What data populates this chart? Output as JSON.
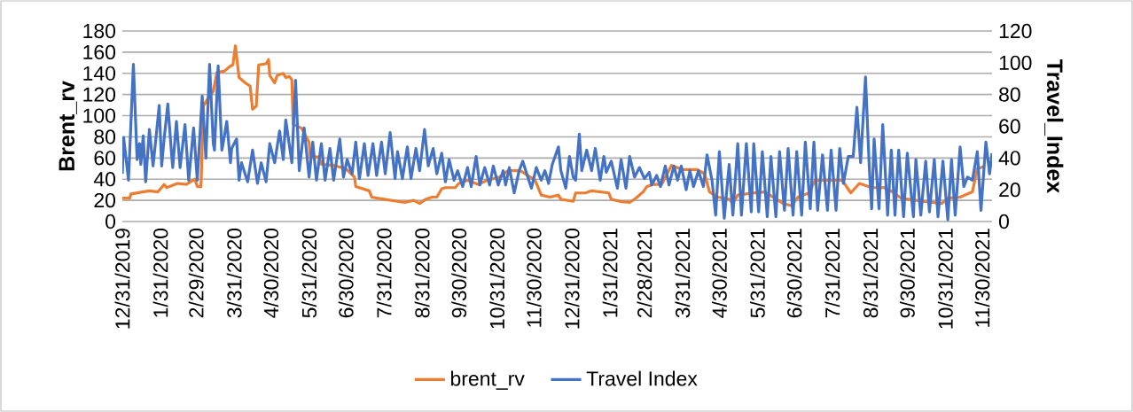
{
  "chart_data": {
    "type": "line",
    "ylabel": "Brent_rv",
    "y2label": "Travel_Index",
    "xlim": [
      "2019-12-31",
      "2021-12-08"
    ],
    "xticks": [
      {
        "value": "2019-12-31",
        "label": "12/31/2019"
      },
      {
        "value": "2020-01-31",
        "label": "1/31/2020"
      },
      {
        "value": "2020-02-29",
        "label": "2/29/2020"
      },
      {
        "value": "2020-03-31",
        "label": "3/31/2020"
      },
      {
        "value": "2020-04-30",
        "label": "4/30/2020"
      },
      {
        "value": "2020-05-31",
        "label": "5/31/2020"
      },
      {
        "value": "2020-06-30",
        "label": "6/30/2020"
      },
      {
        "value": "2020-07-31",
        "label": "7/31/2020"
      },
      {
        "value": "2020-08-31",
        "label": "8/31/2020"
      },
      {
        "value": "2020-09-30",
        "label": "9/30/2020"
      },
      {
        "value": "2020-10-31",
        "label": "10/31/2020"
      },
      {
        "value": "2020-11-30",
        "label": "11/30/2020"
      },
      {
        "value": "2020-12-31",
        "label": "12/31/2020"
      },
      {
        "value": "2021-01-31",
        "label": "1/31/2021"
      },
      {
        "value": "2021-02-28",
        "label": "2/28/2021"
      },
      {
        "value": "2021-03-31",
        "label": "3/31/2021"
      },
      {
        "value": "2021-04-30",
        "label": "4/30/2021"
      },
      {
        "value": "2021-05-31",
        "label": "5/31/2021"
      },
      {
        "value": "2021-06-30",
        "label": "6/30/2021"
      },
      {
        "value": "2021-07-31",
        "label": "7/31/2021"
      },
      {
        "value": "2021-08-31",
        "label": "8/31/2021"
      },
      {
        "value": "2021-09-30",
        "label": "9/30/2021"
      },
      {
        "value": "2021-10-31",
        "label": "10/31/2021"
      },
      {
        "value": "2021-11-30",
        "label": "11/30/2021"
      }
    ],
    "ylim": [
      0,
      180
    ],
    "yticks": [
      0,
      20,
      40,
      60,
      80,
      100,
      120,
      140,
      160,
      180
    ],
    "y2lim": [
      0,
      120
    ],
    "y2ticks": [
      0,
      20,
      40,
      60,
      80,
      100,
      120
    ],
    "grid": "y",
    "legend": "bottom",
    "marker": "none",
    "line_style": "solid",
    "series": [
      {
        "name": "brent_rv",
        "color": "#ed7d31",
        "axis": "y",
        "x": [
          "2019-12-31",
          "2020-01-06",
          "2020-01-07",
          "2020-01-22",
          "2020-01-29",
          "2020-02-03",
          "2020-02-05",
          "2020-02-14",
          "2020-02-21",
          "2020-02-28",
          "2020-03-01",
          "2020-03-04",
          "2020-03-06",
          "2020-03-09",
          "2020-03-14",
          "2020-03-17",
          "2020-03-23",
          "2020-03-28",
          "2020-03-30",
          "2020-04-01",
          "2020-04-04",
          "2020-04-09",
          "2020-04-13",
          "2020-04-15",
          "2020-04-18",
          "2020-04-20",
          "2020-04-26",
          "2020-04-28",
          "2020-04-29",
          "2020-05-03",
          "2020-05-05",
          "2020-05-10",
          "2020-05-12",
          "2020-05-15",
          "2020-05-17",
          "2020-05-18",
          "2020-05-25",
          "2020-05-31",
          "2020-06-01",
          "2020-06-08",
          "2020-06-10",
          "2020-06-20",
          "2020-06-30",
          "2020-07-07",
          "2020-07-08",
          "2020-07-19",
          "2020-07-21",
          "2020-07-31",
          "2020-08-17",
          "2020-08-24",
          "2020-08-29",
          "2020-09-03",
          "2020-09-08",
          "2020-09-12",
          "2020-09-16",
          "2020-09-19",
          "2020-09-27",
          "2020-09-30",
          "2020-10-07",
          "2020-10-16",
          "2020-10-23",
          "2020-11-02",
          "2020-11-09",
          "2020-11-19",
          "2020-12-01",
          "2020-12-06",
          "2020-12-13",
          "2020-12-20",
          "2020-12-22",
          "2021-01-01",
          "2021-01-03",
          "2021-01-11",
          "2021-01-16",
          "2021-01-30",
          "2021-02-01",
          "2021-02-08",
          "2021-02-16",
          "2021-02-21",
          "2021-02-27",
          "2021-03-02",
          "2021-03-07",
          "2021-03-14",
          "2021-03-22",
          "2021-03-31",
          "2021-04-12",
          "2021-04-18",
          "2021-04-22",
          "2021-04-29",
          "2021-05-08",
          "2021-05-11",
          "2021-05-15",
          "2021-05-28",
          "2021-06-06",
          "2021-06-13",
          "2021-06-21",
          "2021-06-28",
          "2021-07-03",
          "2021-07-12",
          "2021-07-17",
          "2021-08-08",
          "2021-08-15",
          "2021-08-22",
          "2021-09-01",
          "2021-09-11",
          "2021-09-18",
          "2021-09-25",
          "2021-10-14",
          "2021-10-28",
          "2021-11-02",
          "2021-11-12",
          "2021-11-22",
          "2021-11-26",
          "2021-12-02"
        ],
        "values": [
          22,
          22,
          26,
          29,
          28,
          35,
          32,
          36,
          35,
          40,
          33,
          33,
          109,
          115,
          123,
          141,
          142,
          147,
          148,
          166,
          136,
          131,
          128,
          106,
          109,
          148,
          149,
          153,
          138,
          131,
          138,
          140,
          136,
          137,
          134,
          92,
          88,
          75,
          61,
          61,
          54,
          53,
          50,
          42,
          33,
          29,
          23,
          21,
          18,
          20,
          17,
          21,
          23,
          23,
          31,
          32,
          32,
          36,
          39,
          35,
          39,
          42,
          48,
          48,
          39,
          25,
          23,
          25,
          21,
          19,
          27,
          27,
          29,
          27,
          21,
          19,
          18,
          22,
          28,
          33,
          35,
          35,
          53,
          49,
          49,
          45,
          28,
          23,
          21,
          17,
          25,
          27,
          28,
          23,
          17,
          15,
          23,
          27,
          39,
          39,
          27,
          36,
          32,
          32,
          28,
          22,
          19,
          17,
          22,
          23,
          28,
          50,
          52
        ]
      },
      {
        "name": "Travel Index",
        "color": "#4472c4",
        "axis": "y2",
        "x": [
          "2019-12-31",
          "2020-01-01",
          "2020-01-05",
          "2020-01-09",
          "2020-01-12",
          "2020-01-14",
          "2020-01-15",
          "2020-01-17",
          "2020-01-19",
          "2020-01-22",
          "2020-01-25",
          "2020-01-27",
          "2020-01-30",
          "2020-02-01",
          "2020-02-03",
          "2020-02-06",
          "2020-02-09",
          "2020-02-10",
          "2020-02-13",
          "2020-02-16",
          "2020-02-20",
          "2020-02-23",
          "2020-02-27",
          "2020-03-01",
          "2020-03-05",
          "2020-03-08",
          "2020-03-11",
          "2020-03-14",
          "2020-03-15",
          "2020-03-18",
          "2020-03-21",
          "2020-03-22",
          "2020-03-25",
          "2020-03-28",
          "2020-03-29",
          "2020-04-02",
          "2020-04-04",
          "2020-04-06",
          "2020-04-11",
          "2020-04-15",
          "2020-04-19",
          "2020-04-22",
          "2020-04-26",
          "2020-04-29",
          "2020-05-03",
          "2020-05-07",
          "2020-05-10",
          "2020-05-12",
          "2020-05-17",
          "2020-05-20",
          "2020-05-23",
          "2020-05-27",
          "2020-05-31",
          "2020-06-03",
          "2020-06-06",
          "2020-06-10",
          "2020-06-13",
          "2020-06-17",
          "2020-06-20",
          "2020-06-25",
          "2020-06-28",
          "2020-07-01",
          "2020-07-05",
          "2020-07-08",
          "2020-07-11",
          "2020-07-15",
          "2020-07-18",
          "2020-07-22",
          "2020-07-25",
          "2020-07-29",
          "2020-08-01",
          "2020-08-05",
          "2020-08-09",
          "2020-08-11",
          "2020-08-15",
          "2020-08-19",
          "2020-08-22",
          "2020-08-26",
          "2020-08-29",
          "2020-09-02",
          "2020-09-05",
          "2020-09-09",
          "2020-09-12",
          "2020-09-16",
          "2020-09-19",
          "2020-09-22",
          "2020-09-26",
          "2020-09-29",
          "2020-10-03",
          "2020-10-07",
          "2020-10-10",
          "2020-10-14",
          "2020-10-17",
          "2020-10-21",
          "2020-10-25",
          "2020-10-28",
          "2020-11-01",
          "2020-11-05",
          "2020-11-07",
          "2020-11-10",
          "2020-11-14",
          "2020-11-18",
          "2020-11-21",
          "2020-11-25",
          "2020-11-28",
          "2020-12-02",
          "2020-12-06",
          "2020-12-09",
          "2020-12-12",
          "2020-12-15",
          "2020-12-20",
          "2020-12-22",
          "2020-12-26",
          "2020-12-29",
          "2021-01-01",
          "2021-01-03",
          "2021-01-06",
          "2021-01-08",
          "2021-01-12",
          "2021-01-16",
          "2021-01-19",
          "2021-01-23",
          "2021-01-26",
          "2021-01-28",
          "2021-02-01",
          "2021-02-06",
          "2021-02-09",
          "2021-02-13",
          "2021-02-16",
          "2021-02-20",
          "2021-02-24",
          "2021-02-28",
          "2021-03-04",
          "2021-03-06",
          "2021-03-10",
          "2021-03-13",
          "2021-03-17",
          "2021-03-20",
          "2021-03-24",
          "2021-03-27",
          "2021-03-30",
          "2021-04-03",
          "2021-04-06",
          "2021-04-09",
          "2021-04-13",
          "2021-04-17",
          "2021-04-20",
          "2021-04-24",
          "2021-04-27",
          "2021-04-30",
          "2021-05-04",
          "2021-05-08",
          "2021-05-11",
          "2021-05-15",
          "2021-05-18",
          "2021-05-22",
          "2021-05-26",
          "2021-05-28",
          "2021-06-01",
          "2021-06-04",
          "2021-06-08",
          "2021-06-11",
          "2021-06-15",
          "2021-06-18",
          "2021-06-22",
          "2021-06-25",
          "2021-06-29",
          "2021-07-02",
          "2021-07-06",
          "2021-07-09",
          "2021-07-13",
          "2021-07-16",
          "2021-07-19",
          "2021-07-23",
          "2021-07-27",
          "2021-07-30",
          "2021-08-03",
          "2021-08-06",
          "2021-08-09",
          "2021-08-13",
          "2021-08-17",
          "2021-08-20",
          "2021-08-23",
          "2021-08-27",
          "2021-08-30",
          "2021-09-01",
          "2021-09-03",
          "2021-09-07",
          "2021-09-10",
          "2021-09-14",
          "2021-09-17",
          "2021-09-20",
          "2021-09-23",
          "2021-09-27",
          "2021-09-30",
          "2021-10-05",
          "2021-10-07",
          "2021-10-11",
          "2021-10-15",
          "2021-10-18",
          "2021-10-22",
          "2021-10-25",
          "2021-10-29",
          "2021-11-02",
          "2021-11-05",
          "2021-11-08",
          "2021-11-12",
          "2021-11-15",
          "2021-11-18",
          "2021-11-22",
          "2021-11-26",
          "2021-11-29",
          "2021-12-03",
          "2021-12-06",
          "2021-12-08"
        ],
        "values": [
          30,
          53,
          26,
          99,
          39,
          49,
          36,
          54,
          25,
          58,
          35,
          50,
          73,
          35,
          52,
          74,
          43,
          34,
          63,
          34,
          61,
          26,
          59,
          26,
          79,
          40,
          99,
          49,
          45,
          98,
          45,
          49,
          63,
          37,
          46,
          52,
          26,
          37,
          25,
          45,
          24,
          37,
          25,
          49,
          37,
          57,
          39,
          64,
          37,
          89,
          32,
          59,
          28,
          50,
          26,
          49,
          26,
          46,
          26,
          52,
          28,
          39,
          30,
          50,
          27,
          49,
          29,
          49,
          29,
          50,
          30,
          56,
          27,
          44,
          27,
          47,
          27,
          46,
          32,
          58,
          35,
          46,
          30,
          43,
          25,
          39,
          26,
          32,
          22,
          34,
          22,
          41,
          23,
          34,
          23,
          35,
          23,
          32,
          23,
          34,
          18,
          32,
          38,
          28,
          21,
          34,
          26,
          32,
          24,
          36,
          47,
          32,
          21,
          41,
          28,
          26,
          55,
          32,
          45,
          32,
          46,
          26,
          41,
          31,
          38,
          21,
          39,
          21,
          41,
          28,
          34,
          27,
          31,
          23,
          29,
          22,
          35,
          23,
          35,
          26,
          35,
          20,
          32,
          22,
          32,
          22,
          42,
          26,
          4,
          44,
          2,
          36,
          4,
          49,
          4,
          49,
          6,
          49,
          6,
          44,
          3,
          41,
          3,
          44,
          7,
          46,
          4,
          44,
          4,
          50,
          8,
          50,
          7,
          42,
          7,
          45,
          7,
          46,
          24,
          41,
          41,
          72,
          37,
          91,
          35,
          8,
          52,
          8,
          61,
          4,
          45,
          4,
          45,
          3,
          43,
          3,
          39,
          4,
          38,
          6,
          39,
          3,
          38,
          1,
          39,
          4,
          47,
          22,
          28,
          26,
          44,
          7,
          50,
          30,
          43
        ]
      }
    ]
  }
}
